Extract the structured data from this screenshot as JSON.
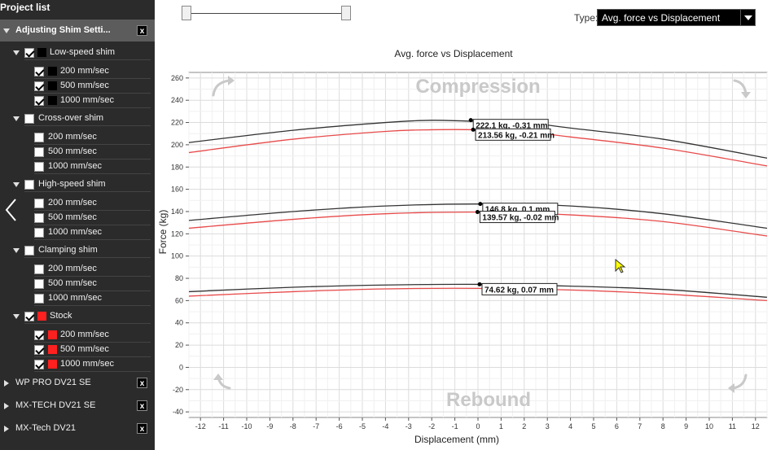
{
  "sidebar": {
    "title": "Project list",
    "active_project": {
      "label": "Adjusting Shim Setti...",
      "close": "x"
    },
    "groups": [
      {
        "label": "Low-speed shim",
        "checked": true,
        "swatch": "#000000",
        "items": [
          {
            "label": "200 mm/sec",
            "checked": true,
            "swatch": "#000000"
          },
          {
            "label": "500 mm/sec",
            "checked": true,
            "swatch": "#000000"
          },
          {
            "label": "1000 mm/sec",
            "checked": true,
            "swatch": "#000000"
          }
        ]
      },
      {
        "label": "Cross-over shim",
        "checked": false,
        "items": [
          {
            "label": "200 mm/sec",
            "checked": false
          },
          {
            "label": "500 mm/sec",
            "checked": false
          },
          {
            "label": "1000 mm/sec",
            "checked": false
          }
        ]
      },
      {
        "label": "High-speed shim",
        "checked": false,
        "items": [
          {
            "label": "200 mm/sec",
            "checked": false
          },
          {
            "label": "500 mm/sec",
            "checked": false
          },
          {
            "label": "1000 mm/sec",
            "checked": false
          }
        ]
      },
      {
        "label": "Clamping shim",
        "checked": false,
        "items": [
          {
            "label": "200 mm/sec",
            "checked": false
          },
          {
            "label": "500 mm/sec",
            "checked": false
          },
          {
            "label": "1000 mm/sec",
            "checked": false
          }
        ]
      },
      {
        "label": "Stock",
        "checked": true,
        "swatch": "#ff2020",
        "items": [
          {
            "label": "200 mm/sec",
            "checked": true,
            "swatch": "#ff2020"
          },
          {
            "label": "500 mm/sec",
            "checked": true,
            "swatch": "#ff2020"
          },
          {
            "label": "1000 mm/sec",
            "checked": true,
            "swatch": "#ff2020"
          }
        ]
      }
    ],
    "other_projects": [
      {
        "label": "WP PRO DV21 SE",
        "close": "x"
      },
      {
        "label": "MX-TECH DV21 SE",
        "close": "x"
      },
      {
        "label": "MX-Tech DV21",
        "close": "x"
      }
    ],
    "collapse_icon": "chevron-left-icon"
  },
  "toolbar": {
    "range_slider": {
      "min_fraction": 0.0,
      "max_fraction": 1.0
    },
    "type_label": "Type:",
    "type_value": "Avg. force vs Displacement"
  },
  "chart_data": {
    "type": "line",
    "title": "Avg. force vs Displacement",
    "xlabel": "Displacement (mm)",
    "ylabel": "Force (kg)",
    "xlim": [
      -12.5,
      12.5
    ],
    "ylim": [
      -45,
      265
    ],
    "xticks": [
      -12,
      -11,
      -10,
      -9,
      -8,
      -7,
      -6,
      -5,
      -4,
      -3,
      -2,
      -1,
      0,
      1,
      2,
      3,
      4,
      5,
      6,
      7,
      8,
      9,
      10,
      11,
      12
    ],
    "yticks": [
      -40,
      -20,
      0,
      20,
      40,
      60,
      80,
      100,
      120,
      140,
      160,
      180,
      200,
      220,
      240,
      260
    ],
    "grid": true,
    "watermarks": {
      "top": "Compression",
      "bottom": "Rebound"
    },
    "series": [
      {
        "color": "#333333",
        "x": [
          -12.5,
          -8,
          -4,
          -2,
          0,
          2,
          4,
          8,
          12.5
        ],
        "values": [
          202,
          213,
          220,
          222,
          221,
          220,
          215,
          205,
          188
        ]
      },
      {
        "color": "#e84a4a",
        "x": [
          -12.5,
          -8,
          -4,
          -2,
          0,
          2,
          4,
          8,
          12.5
        ],
        "values": [
          193,
          205,
          212,
          213.5,
          213.5,
          212,
          207,
          197,
          181
        ]
      },
      {
        "color": "#333333",
        "x": [
          -12.5,
          -8,
          -4,
          0,
          4,
          8,
          12.5
        ],
        "values": [
          132,
          140,
          145,
          146.8,
          145,
          138,
          125
        ]
      },
      {
        "color": "#e84a4a",
        "x": [
          -12.5,
          -8,
          -4,
          0,
          4,
          8,
          12.5
        ],
        "values": [
          125,
          133,
          138,
          139.5,
          137,
          131,
          118
        ]
      },
      {
        "color": "#333333",
        "x": [
          -12.5,
          -8,
          -4,
          0,
          4,
          8,
          12.5
        ],
        "values": [
          68,
          72,
          74,
          74.6,
          73,
          70,
          63
        ]
      },
      {
        "color": "#e84a4a",
        "x": [
          -12.5,
          -8,
          -4,
          0,
          4,
          8,
          12.5
        ],
        "values": [
          64,
          68,
          70.5,
          71,
          69.5,
          66,
          60
        ]
      }
    ],
    "annotations": [
      {
        "text": "222.1 kg, -0.31 mm",
        "x": -0.31,
        "y": 222.1,
        "series": 0
      },
      {
        "text": "213.56 kg, -0.21 mm",
        "x": -0.21,
        "y": 213.56,
        "series": 1
      },
      {
        "text": "146.8 kg, 0.1 mm",
        "x": 0.1,
        "y": 146.8,
        "series": 2
      },
      {
        "text": "139.57 kg, -0.02 mm",
        "x": -0.02,
        "y": 139.57,
        "series": 3
      },
      {
        "text": "74.62 kg, 0.07 mm",
        "x": 0.07,
        "y": 74.62,
        "series": 4
      }
    ]
  }
}
